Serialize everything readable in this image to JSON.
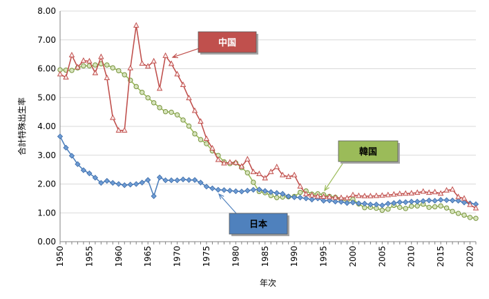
{
  "chart_data": {
    "type": "line",
    "title": "",
    "xlabel": "年次",
    "ylabel": "合計特殊出生率",
    "xlim": [
      1950,
      2021
    ],
    "ylim": [
      0,
      8
    ],
    "y_ticks": [
      "0.00",
      "1.00",
      "2.00",
      "3.00",
      "4.00",
      "5.00",
      "6.00",
      "7.00",
      "8.00"
    ],
    "x_ticks": [
      "1950",
      "1955",
      "1960",
      "1965",
      "1970",
      "1975",
      "1980",
      "1985",
      "1990",
      "1995",
      "2000",
      "2005",
      "2010",
      "2015",
      "2020"
    ],
    "grid": "horizontal",
    "x": [
      1950,
      1951,
      1952,
      1953,
      1954,
      1955,
      1956,
      1957,
      1958,
      1959,
      1960,
      1961,
      1962,
      1963,
      1964,
      1965,
      1966,
      1967,
      1968,
      1969,
      1970,
      1971,
      1972,
      1973,
      1974,
      1975,
      1976,
      1977,
      1978,
      1979,
      1980,
      1981,
      1982,
      1983,
      1984,
      1985,
      1986,
      1987,
      1988,
      1989,
      1990,
      1991,
      1992,
      1993,
      1994,
      1995,
      1996,
      1997,
      1998,
      1999,
      2000,
      2001,
      2002,
      2003,
      2004,
      2005,
      2006,
      2007,
      2008,
      2009,
      2010,
      2011,
      2012,
      2013,
      2014,
      2015,
      2016,
      2017,
      2018,
      2019,
      2020,
      2021
    ],
    "series": [
      {
        "name": "中国",
        "color": "#c0504d",
        "marker": "triangle",
        "values": [
          5.81,
          5.7,
          6.47,
          6.05,
          6.28,
          6.26,
          5.85,
          6.41,
          5.68,
          4.3,
          3.86,
          3.86,
          6.02,
          7.5,
          6.18,
          6.08,
          6.26,
          5.31,
          6.45,
          6.17,
          5.81,
          5.44,
          4.98,
          4.54,
          4.17,
          3.57,
          3.24,
          2.84,
          2.72,
          2.75,
          2.74,
          2.61,
          2.86,
          2.42,
          2.35,
          2.2,
          2.42,
          2.59,
          2.31,
          2.25,
          2.31,
          1.92,
          1.65,
          1.61,
          1.57,
          1.56,
          1.55,
          1.53,
          1.52,
          1.51,
          1.62,
          1.59,
          1.58,
          1.58,
          1.59,
          1.6,
          1.62,
          1.64,
          1.66,
          1.67,
          1.68,
          1.7,
          1.74,
          1.7,
          1.72,
          1.67,
          1.78,
          1.81,
          1.55,
          1.5,
          1.28,
          1.16
        ]
      },
      {
        "name": "韓国",
        "color": "#9bbb59",
        "marker": "circle",
        "values": [
          5.96,
          5.95,
          5.94,
          6.03,
          6.1,
          6.1,
          6.13,
          6.17,
          6.13,
          6.03,
          5.93,
          5.79,
          5.6,
          5.38,
          5.18,
          4.99,
          4.82,
          4.65,
          4.51,
          4.49,
          4.4,
          4.22,
          4.01,
          3.74,
          3.54,
          3.4,
          3.15,
          2.99,
          2.77,
          2.71,
          2.73,
          2.57,
          2.39,
          2.06,
          1.74,
          1.7,
          1.6,
          1.53,
          1.55,
          1.56,
          1.57,
          1.71,
          1.76,
          1.65,
          1.66,
          1.63,
          1.57,
          1.54,
          1.46,
          1.43,
          1.47,
          1.31,
          1.18,
          1.19,
          1.16,
          1.09,
          1.13,
          1.26,
          1.19,
          1.15,
          1.23,
          1.24,
          1.3,
          1.19,
          1.21,
          1.24,
          1.17,
          1.05,
          0.98,
          0.92,
          0.84,
          0.81
        ]
      },
      {
        "name": "日本",
        "color": "#4f81bd",
        "marker": "diamond",
        "values": [
          3.65,
          3.26,
          2.98,
          2.69,
          2.48,
          2.37,
          2.22,
          2.04,
          2.11,
          2.04,
          2.0,
          1.96,
          1.98,
          2.0,
          2.05,
          2.14,
          1.58,
          2.23,
          2.13,
          2.13,
          2.13,
          2.16,
          2.14,
          2.14,
          2.05,
          1.91,
          1.85,
          1.8,
          1.79,
          1.77,
          1.75,
          1.74,
          1.77,
          1.8,
          1.81,
          1.76,
          1.72,
          1.69,
          1.66,
          1.57,
          1.54,
          1.53,
          1.5,
          1.46,
          1.5,
          1.42,
          1.43,
          1.39,
          1.38,
          1.34,
          1.36,
          1.33,
          1.32,
          1.29,
          1.29,
          1.26,
          1.32,
          1.34,
          1.37,
          1.37,
          1.39,
          1.39,
          1.41,
          1.43,
          1.42,
          1.45,
          1.44,
          1.43,
          1.42,
          1.36,
          1.33,
          1.3
        ]
      }
    ],
    "callouts": [
      {
        "series": "中国",
        "label": "中国",
        "color": "#c0504d",
        "text_color": "#ffffff"
      },
      {
        "series": "韓国",
        "label": "韓国",
        "color": "#9bbb59",
        "text_color": "#000000"
      },
      {
        "series": "日本",
        "label": "日本",
        "color": "#4f81bd",
        "text_color": "#000000"
      }
    ]
  }
}
